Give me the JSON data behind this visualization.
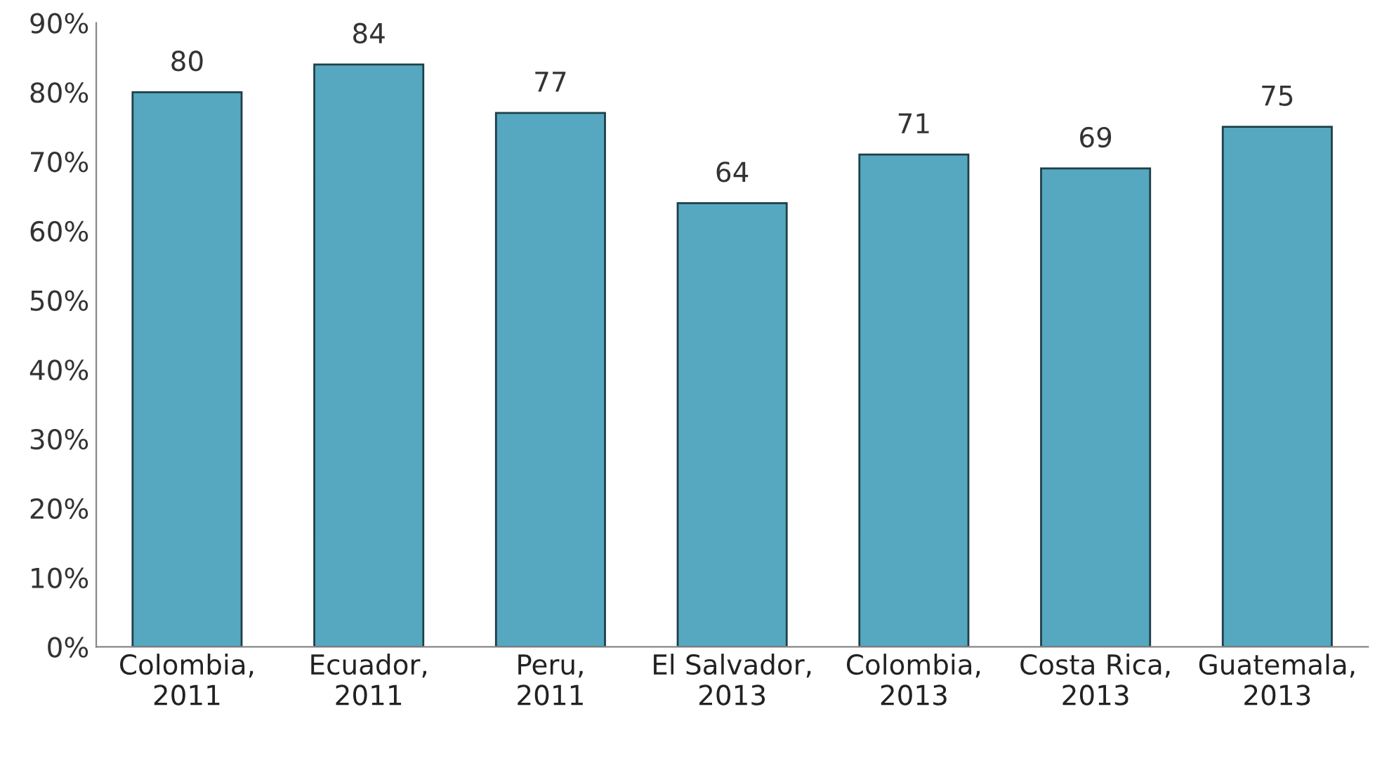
{
  "chart_data": {
    "type": "bar",
    "categories": [
      "Colombia,\n2011",
      "Ecuador,\n2011",
      "Peru,\n2011",
      "El Salvador,\n2013",
      "Colombia,\n2013",
      "Costa Rica,\n2013",
      "Guatemala,\n2013"
    ],
    "values": [
      80,
      84,
      77,
      64,
      71,
      69,
      75
    ],
    "color": "#55a8c0",
    "ylim": [
      0,
      90
    ],
    "yticks": [
      {
        "value": 0,
        "label": "0%"
      },
      {
        "value": 10,
        "label": "10%"
      },
      {
        "value": 20,
        "label": "20%"
      },
      {
        "value": 30,
        "label": "30%"
      },
      {
        "value": 40,
        "label": "40%"
      },
      {
        "value": 50,
        "label": "50%"
      },
      {
        "value": 60,
        "label": "60%"
      },
      {
        "value": 70,
        "label": "70%"
      },
      {
        "value": 80,
        "label": "80%"
      },
      {
        "value": 90,
        "label": "90%"
      }
    ],
    "data_labels": true,
    "grid": false,
    "legend": false
  }
}
